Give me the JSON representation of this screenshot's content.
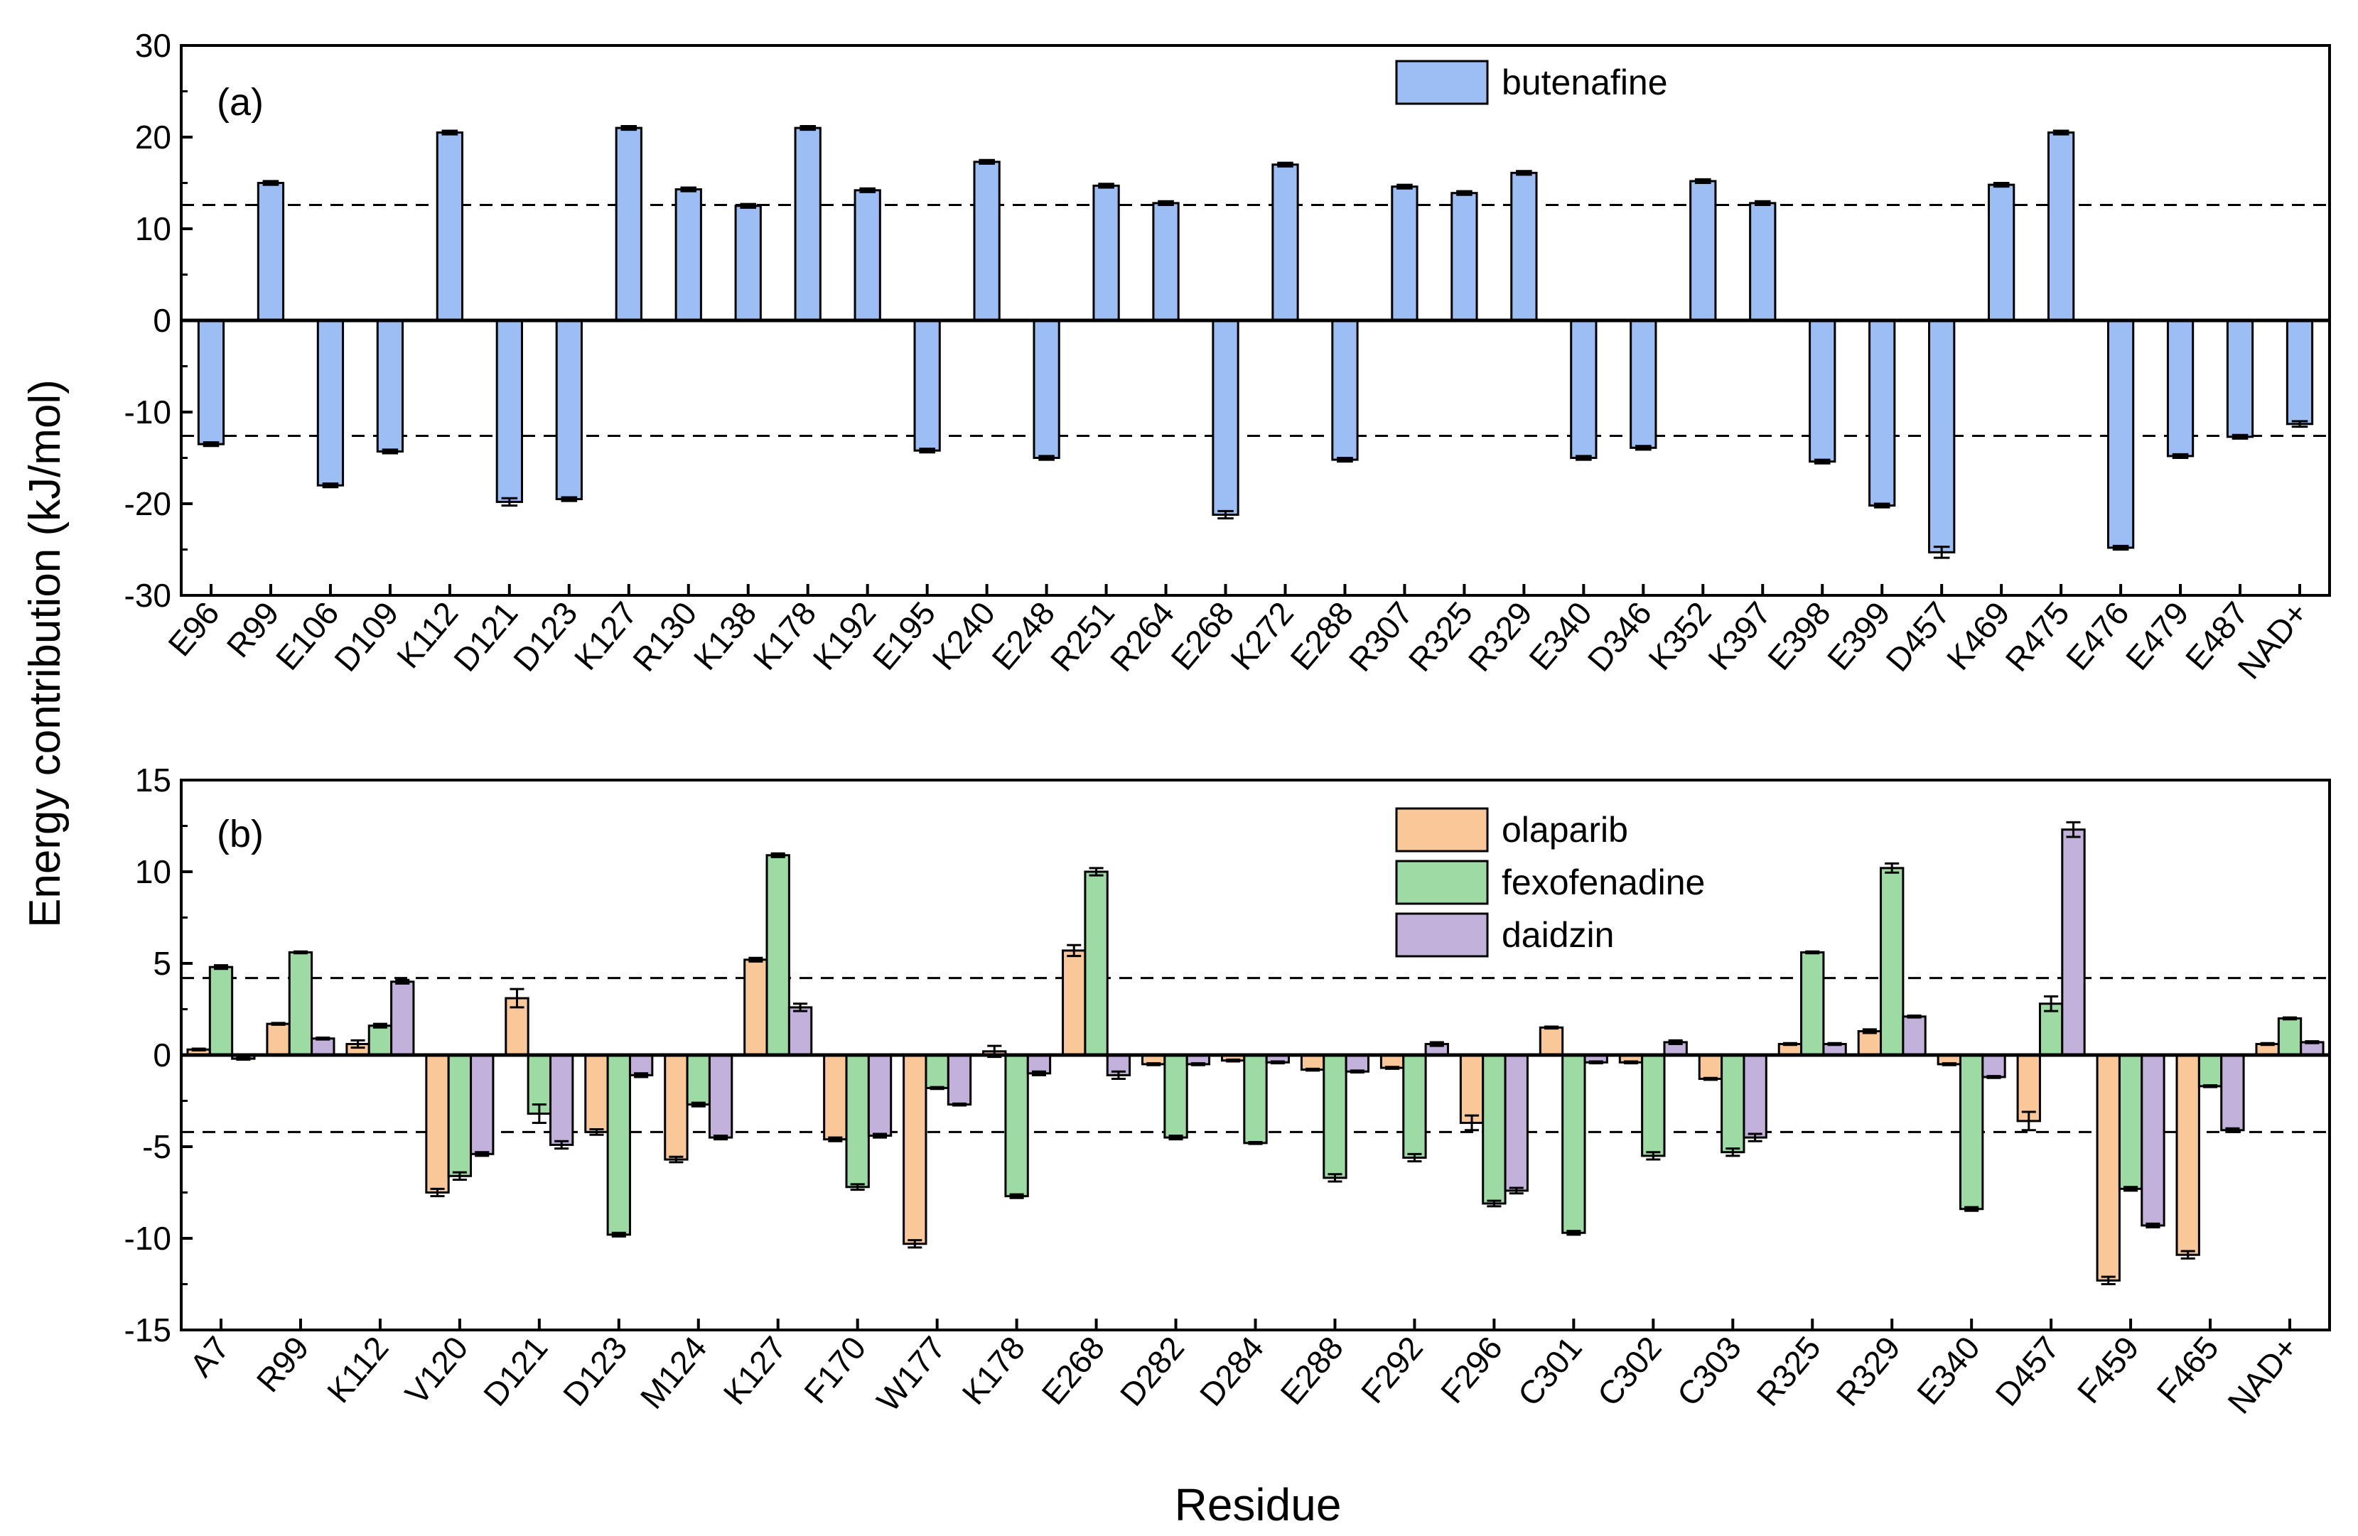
{
  "figure": {
    "ylabel": "Energy contribution (kJ/mol)",
    "xlabel": "Residue"
  },
  "chart_data": [
    {
      "type": "bar",
      "panel_label": "(a)",
      "title": "",
      "xlabel": "Residue",
      "ylabel": "Energy contribution (kJ/mol)",
      "ylim": [
        -30,
        30
      ],
      "yticks": [
        -30,
        -20,
        -10,
        0,
        10,
        20,
        30
      ],
      "reference_lines": [
        12.6,
        -12.6
      ],
      "legend_position": "top-center",
      "categories": [
        "E96",
        "R99",
        "E106",
        "D109",
        "K112",
        "D121",
        "D123",
        "K127",
        "R130",
        "K138",
        "K178",
        "K192",
        "E195",
        "K240",
        "E248",
        "R251",
        "R264",
        "E268",
        "K272",
        "E288",
        "R307",
        "R325",
        "R329",
        "E340",
        "D346",
        "K352",
        "K397",
        "E398",
        "E399",
        "D457",
        "K469",
        "R475",
        "E476",
        "E479",
        "E487",
        "NAD+"
      ],
      "series": [
        {
          "name": "butenafine",
          "color": "#9dbdf5",
          "values": [
            -13.5,
            15.0,
            -18.0,
            -14.3,
            20.5,
            -19.8,
            -19.5,
            21.0,
            14.3,
            12.5,
            21.0,
            14.2,
            -14.2,
            17.3,
            -15.0,
            14.7,
            12.8,
            -21.2,
            17.0,
            -15.2,
            14.6,
            13.9,
            16.1,
            -15.0,
            -13.9,
            15.2,
            12.8,
            -15.4,
            -20.2,
            -25.3,
            14.8,
            20.5,
            -24.8,
            -14.8,
            -12.7,
            -11.3
          ],
          "errors": [
            0.2,
            0.2,
            0.2,
            0.2,
            0.2,
            0.4,
            0.2,
            0.2,
            0.2,
            0.2,
            0.2,
            0.2,
            0.2,
            0.2,
            0.2,
            0.2,
            0.2,
            0.4,
            0.2,
            0.2,
            0.2,
            0.2,
            0.2,
            0.2,
            0.2,
            0.2,
            0.2,
            0.2,
            0.2,
            0.6,
            0.2,
            0.2,
            0.2,
            0.2,
            0.2,
            0.3
          ]
        }
      ]
    },
    {
      "type": "bar",
      "panel_label": "(b)",
      "title": "",
      "xlabel": "Residue",
      "ylabel": "Energy contribution (kJ/mol)",
      "ylim": [
        -15,
        15
      ],
      "yticks": [
        -15,
        -10,
        -5,
        0,
        5,
        10,
        15
      ],
      "reference_lines": [
        4.2,
        -4.2
      ],
      "legend_position": "top-center",
      "categories": [
        "A7",
        "R99",
        "K112",
        "V120",
        "D121",
        "D123",
        "M124",
        "K127",
        "F170",
        "W177",
        "K178",
        "E268",
        "D282",
        "D284",
        "E288",
        "F292",
        "F296",
        "C301",
        "C302",
        "C303",
        "R325",
        "R329",
        "E340",
        "D457",
        "F459",
        "F465",
        "NAD+"
      ],
      "series": [
        {
          "name": "olaparib",
          "color": "#fac898",
          "values": [
            0.3,
            1.7,
            0.6,
            -7.5,
            3.1,
            -4.2,
            -5.7,
            5.2,
            -4.6,
            -10.3,
            0.2,
            5.7,
            -0.5,
            -0.3,
            -0.8,
            -0.7,
            -3.7,
            1.5,
            -0.4,
            -1.3,
            0.6,
            1.3,
            -0.5,
            -3.6,
            -12.3,
            -10.9,
            0.6
          ],
          "errors": [
            0.05,
            0.05,
            0.2,
            0.2,
            0.5,
            0.15,
            0.15,
            0.1,
            0.1,
            0.2,
            0.3,
            0.3,
            0.05,
            0.05,
            0.05,
            0.05,
            0.4,
            0.05,
            0.05,
            0.05,
            0.05,
            0.1,
            0.05,
            0.5,
            0.2,
            0.2,
            0.05
          ]
        },
        {
          "name": "fexofenadine",
          "color": "#9ddaa4",
          "values": [
            4.8,
            5.6,
            1.6,
            -6.6,
            -3.2,
            -9.8,
            -2.7,
            10.9,
            -7.2,
            -1.8,
            -7.7,
            10.0,
            -4.5,
            -4.8,
            -6.7,
            -5.6,
            -8.1,
            -9.7,
            -5.5,
            -5.3,
            5.6,
            10.2,
            -8.4,
            2.8,
            -7.3,
            -1.7,
            2.0
          ],
          "errors": [
            0.1,
            0.05,
            0.1,
            0.2,
            0.5,
            0.1,
            0.1,
            0.1,
            0.15,
            0.05,
            0.1,
            0.2,
            0.1,
            0.05,
            0.2,
            0.2,
            0.15,
            0.1,
            0.2,
            0.2,
            0.05,
            0.25,
            0.1,
            0.4,
            0.1,
            0.05,
            0.05
          ]
        },
        {
          "name": "daidzin",
          "color": "#c2b1db",
          "values": [
            -0.2,
            0.9,
            4.0,
            -5.4,
            -4.9,
            -1.1,
            -4.5,
            2.6,
            -4.4,
            -2.7,
            -1.0,
            -1.1,
            -0.5,
            -0.4,
            -0.9,
            0.6,
            -7.4,
            -0.4,
            0.7,
            -4.5,
            0.6,
            2.1,
            -1.2,
            12.3,
            -9.3,
            -4.1,
            0.7
          ],
          "errors": [
            0.05,
            0.05,
            0.1,
            0.1,
            0.2,
            0.1,
            0.1,
            0.2,
            0.1,
            0.05,
            0.1,
            0.2,
            0.05,
            0.05,
            0.05,
            0.1,
            0.15,
            0.05,
            0.1,
            0.2,
            0.05,
            0.05,
            0.05,
            0.4,
            0.1,
            0.1,
            0.05
          ]
        }
      ]
    }
  ]
}
